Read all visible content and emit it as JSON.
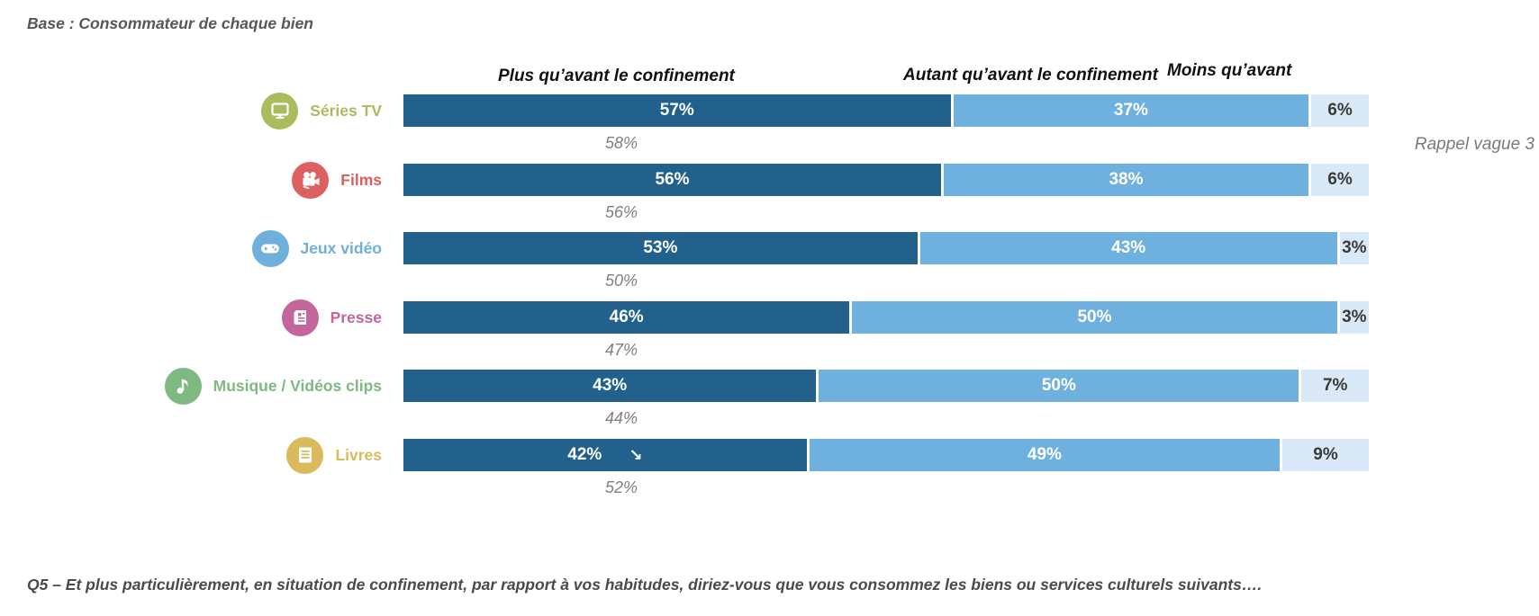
{
  "base_note": "Base : Consommateur de chaque bien",
  "rappel_note": "Rappel vague 3",
  "question": "Q5 – Et plus particulièrement, en situation de confinement, par rapport à vos habitudes, diriez-vous que vous consommez les biens ou services culturels suivants….",
  "legend": {
    "plus": "Plus qu’avant le confinement",
    "autant": "Autant qu’avant le confinement",
    "moins": "Moins qu’avant"
  },
  "colors": {
    "bar_plus": "#21618C",
    "bar_autant": "#6FB1DE",
    "bar_moins": "#D9E9F7",
    "series_tv": "#A9BC5E",
    "films": "#DD6060",
    "jeux_video": "#6FAFDB",
    "presse": "#C4659B",
    "musique": "#7EB981",
    "livres": "#D9BB5B"
  },
  "rows": [
    {
      "label": "Séries TV",
      "icon": "tv-icon",
      "color": "#A9BC5E",
      "plus": "57%",
      "autant": "37%",
      "moins": "6%",
      "rappel": "58%",
      "arrow": ""
    },
    {
      "label": "Films",
      "icon": "film-camera-icon",
      "color": "#DD6060",
      "plus": "56%",
      "autant": "38%",
      "moins": "6%",
      "rappel": "56%",
      "arrow": ""
    },
    {
      "label": "Jeux vidéo",
      "icon": "gamepad-icon",
      "color": "#6FAFDB",
      "plus": "53%",
      "autant": "43%",
      "moins": "3%",
      "rappel": "50%",
      "arrow": ""
    },
    {
      "label": "Presse",
      "icon": "newspaper-icon",
      "color": "#C4659B",
      "plus": "46%",
      "autant": "50%",
      "moins": "3%",
      "rappel": "47%",
      "arrow": ""
    },
    {
      "label": "Musique / Vidéos clips",
      "icon": "music-note-icon",
      "color": "#7EB981",
      "plus": "43%",
      "autant": "50%",
      "moins": "7%",
      "rappel": "44%",
      "arrow": ""
    },
    {
      "label": "Livres",
      "icon": "book-icon",
      "color": "#D9BB5B",
      "plus": "42%",
      "autant": "49%",
      "moins": "9%",
      "rappel": "52%",
      "arrow": "↘"
    }
  ],
  "chart_data": {
    "type": "bar",
    "orientation": "horizontal-stacked",
    "title": "",
    "categories": [
      "Séries TV",
      "Films",
      "Jeux vidéo",
      "Presse",
      "Musique / Vidéos clips",
      "Livres"
    ],
    "series": [
      {
        "name": "Plus qu’avant le confinement",
        "values": [
          57,
          56,
          53,
          46,
          43,
          42
        ]
      },
      {
        "name": "Autant qu’avant le confinement",
        "values": [
          37,
          38,
          43,
          50,
          50,
          49
        ]
      },
      {
        "name": "Moins qu’avant",
        "values": [
          6,
          6,
          3,
          3,
          7,
          9
        ]
      }
    ],
    "rappel_vague_3_values": [
      58,
      56,
      50,
      47,
      44,
      52
    ],
    "unit": "%",
    "xlim": [
      0,
      100
    ],
    "annotations": [
      "Livres: flèche de baisse ↘ sur 42%"
    ],
    "legend_position": "top",
    "grid": false
  }
}
